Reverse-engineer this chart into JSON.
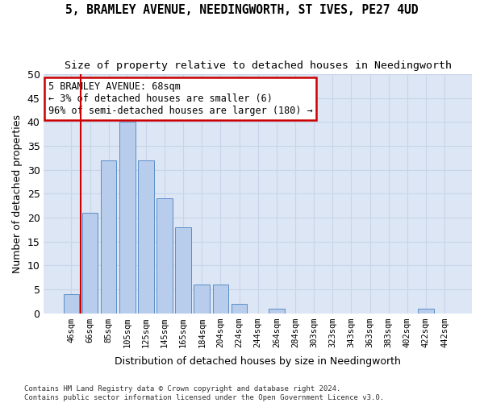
{
  "title": "5, BRAMLEY AVENUE, NEEDINGWORTH, ST IVES, PE27 4UD",
  "subtitle": "Size of property relative to detached houses in Needingworth",
  "xlabel": "Distribution of detached houses by size in Needingworth",
  "ylabel": "Number of detached properties",
  "categories": [
    "46sqm",
    "66sqm",
    "85sqm",
    "105sqm",
    "125sqm",
    "145sqm",
    "165sqm",
    "184sqm",
    "204sqm",
    "224sqm",
    "244sqm",
    "264sqm",
    "284sqm",
    "303sqm",
    "323sqm",
    "343sqm",
    "363sqm",
    "383sqm",
    "402sqm",
    "422sqm",
    "442sqm"
  ],
  "values": [
    4,
    21,
    32,
    40,
    32,
    24,
    18,
    6,
    6,
    2,
    0,
    1,
    0,
    0,
    0,
    0,
    0,
    0,
    0,
    1,
    0
  ],
  "bar_color": "#b8ccec",
  "bar_edge_color": "#5b8ec9",
  "chart_bg_color": "#dce6f5",
  "fig_bg_color": "#ffffff",
  "grid_color": "#c8d4e8",
  "annotation_text_line1": "5 BRAMLEY AVENUE: 68sqm",
  "annotation_text_line2": "← 3% of detached houses are smaller (6)",
  "annotation_text_line3": "96% of semi-detached houses are larger (180) →",
  "annotation_box_edge_color": "#cc0000",
  "property_line_color": "#cc0000",
  "property_line_x": 0.5,
  "ylim": [
    0,
    50
  ],
  "yticks": [
    0,
    5,
    10,
    15,
    20,
    25,
    30,
    35,
    40,
    45,
    50
  ],
  "footer_line1": "Contains HM Land Registry data © Crown copyright and database right 2024.",
  "footer_line2": "Contains public sector information licensed under the Open Government Licence v3.0."
}
